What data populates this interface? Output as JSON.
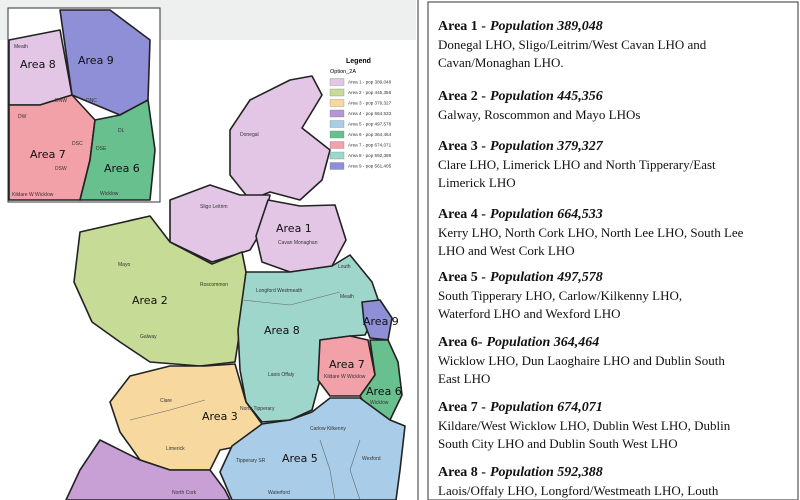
{
  "map": {
    "inset_labels": [
      "Area 8",
      "Area 9",
      "Area 7",
      "Area 6",
      "Meath",
      "Wicklow",
      "Kildare W Wicklow",
      "DNW",
      "DNC",
      "DW",
      "DSW",
      "DSC",
      "DSE",
      "DL"
    ],
    "region_labels": [
      "Area 1",
      "Area 2",
      "Area 3",
      "Area 5",
      "Area 6",
      "Area 7",
      "Area 8",
      "Area 9"
    ],
    "county_labels": [
      "Donegal",
      "Sligo Leitrim",
      "Cavan Monaghan",
      "Mayo",
      "Roscommon",
      "Galway",
      "Longford Westmeath",
      "Meath",
      "Louth",
      "Laois Offaly",
      "Kildare W Wicklow",
      "Wicklow",
      "Clare",
      "North Tipperary",
      "Limerick",
      "Tipperary SR",
      "Carlow Kilkenny",
      "Wexford",
      "Waterford",
      "North Cork"
    ],
    "legend": {
      "title": "Legend",
      "subtitle": "Option_2A",
      "entries": [
        "Area 1 - pop 389,048",
        "Area 2 - pop 445,356",
        "Area 3 - pop 379,327",
        "Area 4 - pop 664,533",
        "Area 5 - pop 497,578",
        "Area 6 - pop 364,464",
        "Area 7 - pop 674,071",
        "Area 8 - pop 592,388",
        "Area 9 - pop 561,405"
      ]
    }
  },
  "areas": [
    {
      "heading": "Area 1 -",
      "population": "Population 389,048",
      "description_lines": [
        "Donegal LHO, Sligo/Leitrim/West Cavan LHO and",
        "Cavan/Monaghan LHO."
      ]
    },
    {
      "heading": "Area 2 -",
      "population": "Population 445,356",
      "description_lines": [
        "Galway, Roscommon and Mayo LHOs"
      ]
    },
    {
      "heading": "Area 3 -",
      "population": "Population 379,327",
      "description_lines": [
        "Clare LHO, Limerick LHO and North Tipperary/East",
        "Limerick LHO"
      ]
    },
    {
      "heading": "Area 4 -",
      "population": "Population 664,533",
      "description_lines": [
        "Kerry LHO, North Cork LHO, North Lee LHO, South Lee",
        "LHO and West Cork LHO"
      ]
    },
    {
      "heading": "Area 5 -",
      "population": "Population 497,578",
      "description_lines": [
        "South Tipperary LHO, Carlow/Kilkenny LHO,",
        "Waterford LHO and Wexford LHO"
      ]
    },
    {
      "heading": "Area 6-",
      "population": "Population 364,464",
      "description_lines": [
        "Wicklow LHO, Dun Laoghaire LHO and Dublin South",
        "East LHO"
      ]
    },
    {
      "heading": "Area 7 -",
      "population": "Population 674,071",
      "description_lines": [
        "Kildare/West Wicklow LHO, Dublin West LHO, Dublin",
        "South City LHO and Dublin South West LHO"
      ]
    },
    {
      "heading": "Area 8 -",
      "population": "Population 592,388",
      "description_lines": [
        "Laois/Offaly LHO, Longford/Westmeath LHO, Louth"
      ]
    }
  ]
}
